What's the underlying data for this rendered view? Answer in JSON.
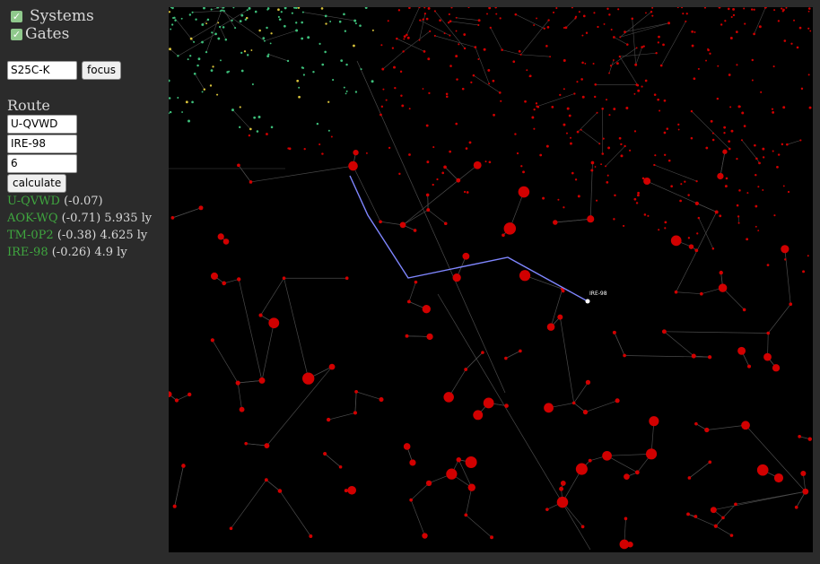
{
  "layers": {
    "systems_label": "Systems",
    "gates_label": "Gates",
    "systems_checked": true,
    "gates_checked": true
  },
  "focus": {
    "value": "S25C-K",
    "button_label": "focus"
  },
  "route": {
    "title": "Route",
    "from": "U-QVWD",
    "to": "IRE-98",
    "jumps": "6",
    "calculate_label": "calculate",
    "results": [
      {
        "system": "U-QVWD",
        "detail": "(-0.07)"
      },
      {
        "system": "AOK-WQ",
        "detail": "(-0.71) 5.935 ly"
      },
      {
        "system": "TM-0P2",
        "detail": "(-0.38) 4.625 ly"
      },
      {
        "system": "IRE-98",
        "detail": "(-0.26) 4.9 ly"
      }
    ]
  },
  "map": {
    "selected_label": "IRE-98",
    "colors": {
      "background": "#000000",
      "system_lowsec": "#d10000",
      "system_highsec_green": "#3dbf7a",
      "system_highsec_yellow": "#d8c23a",
      "gate_line": "#4a4a4a",
      "route_line": "#7f86ff",
      "selected": "#ffffff"
    }
  }
}
